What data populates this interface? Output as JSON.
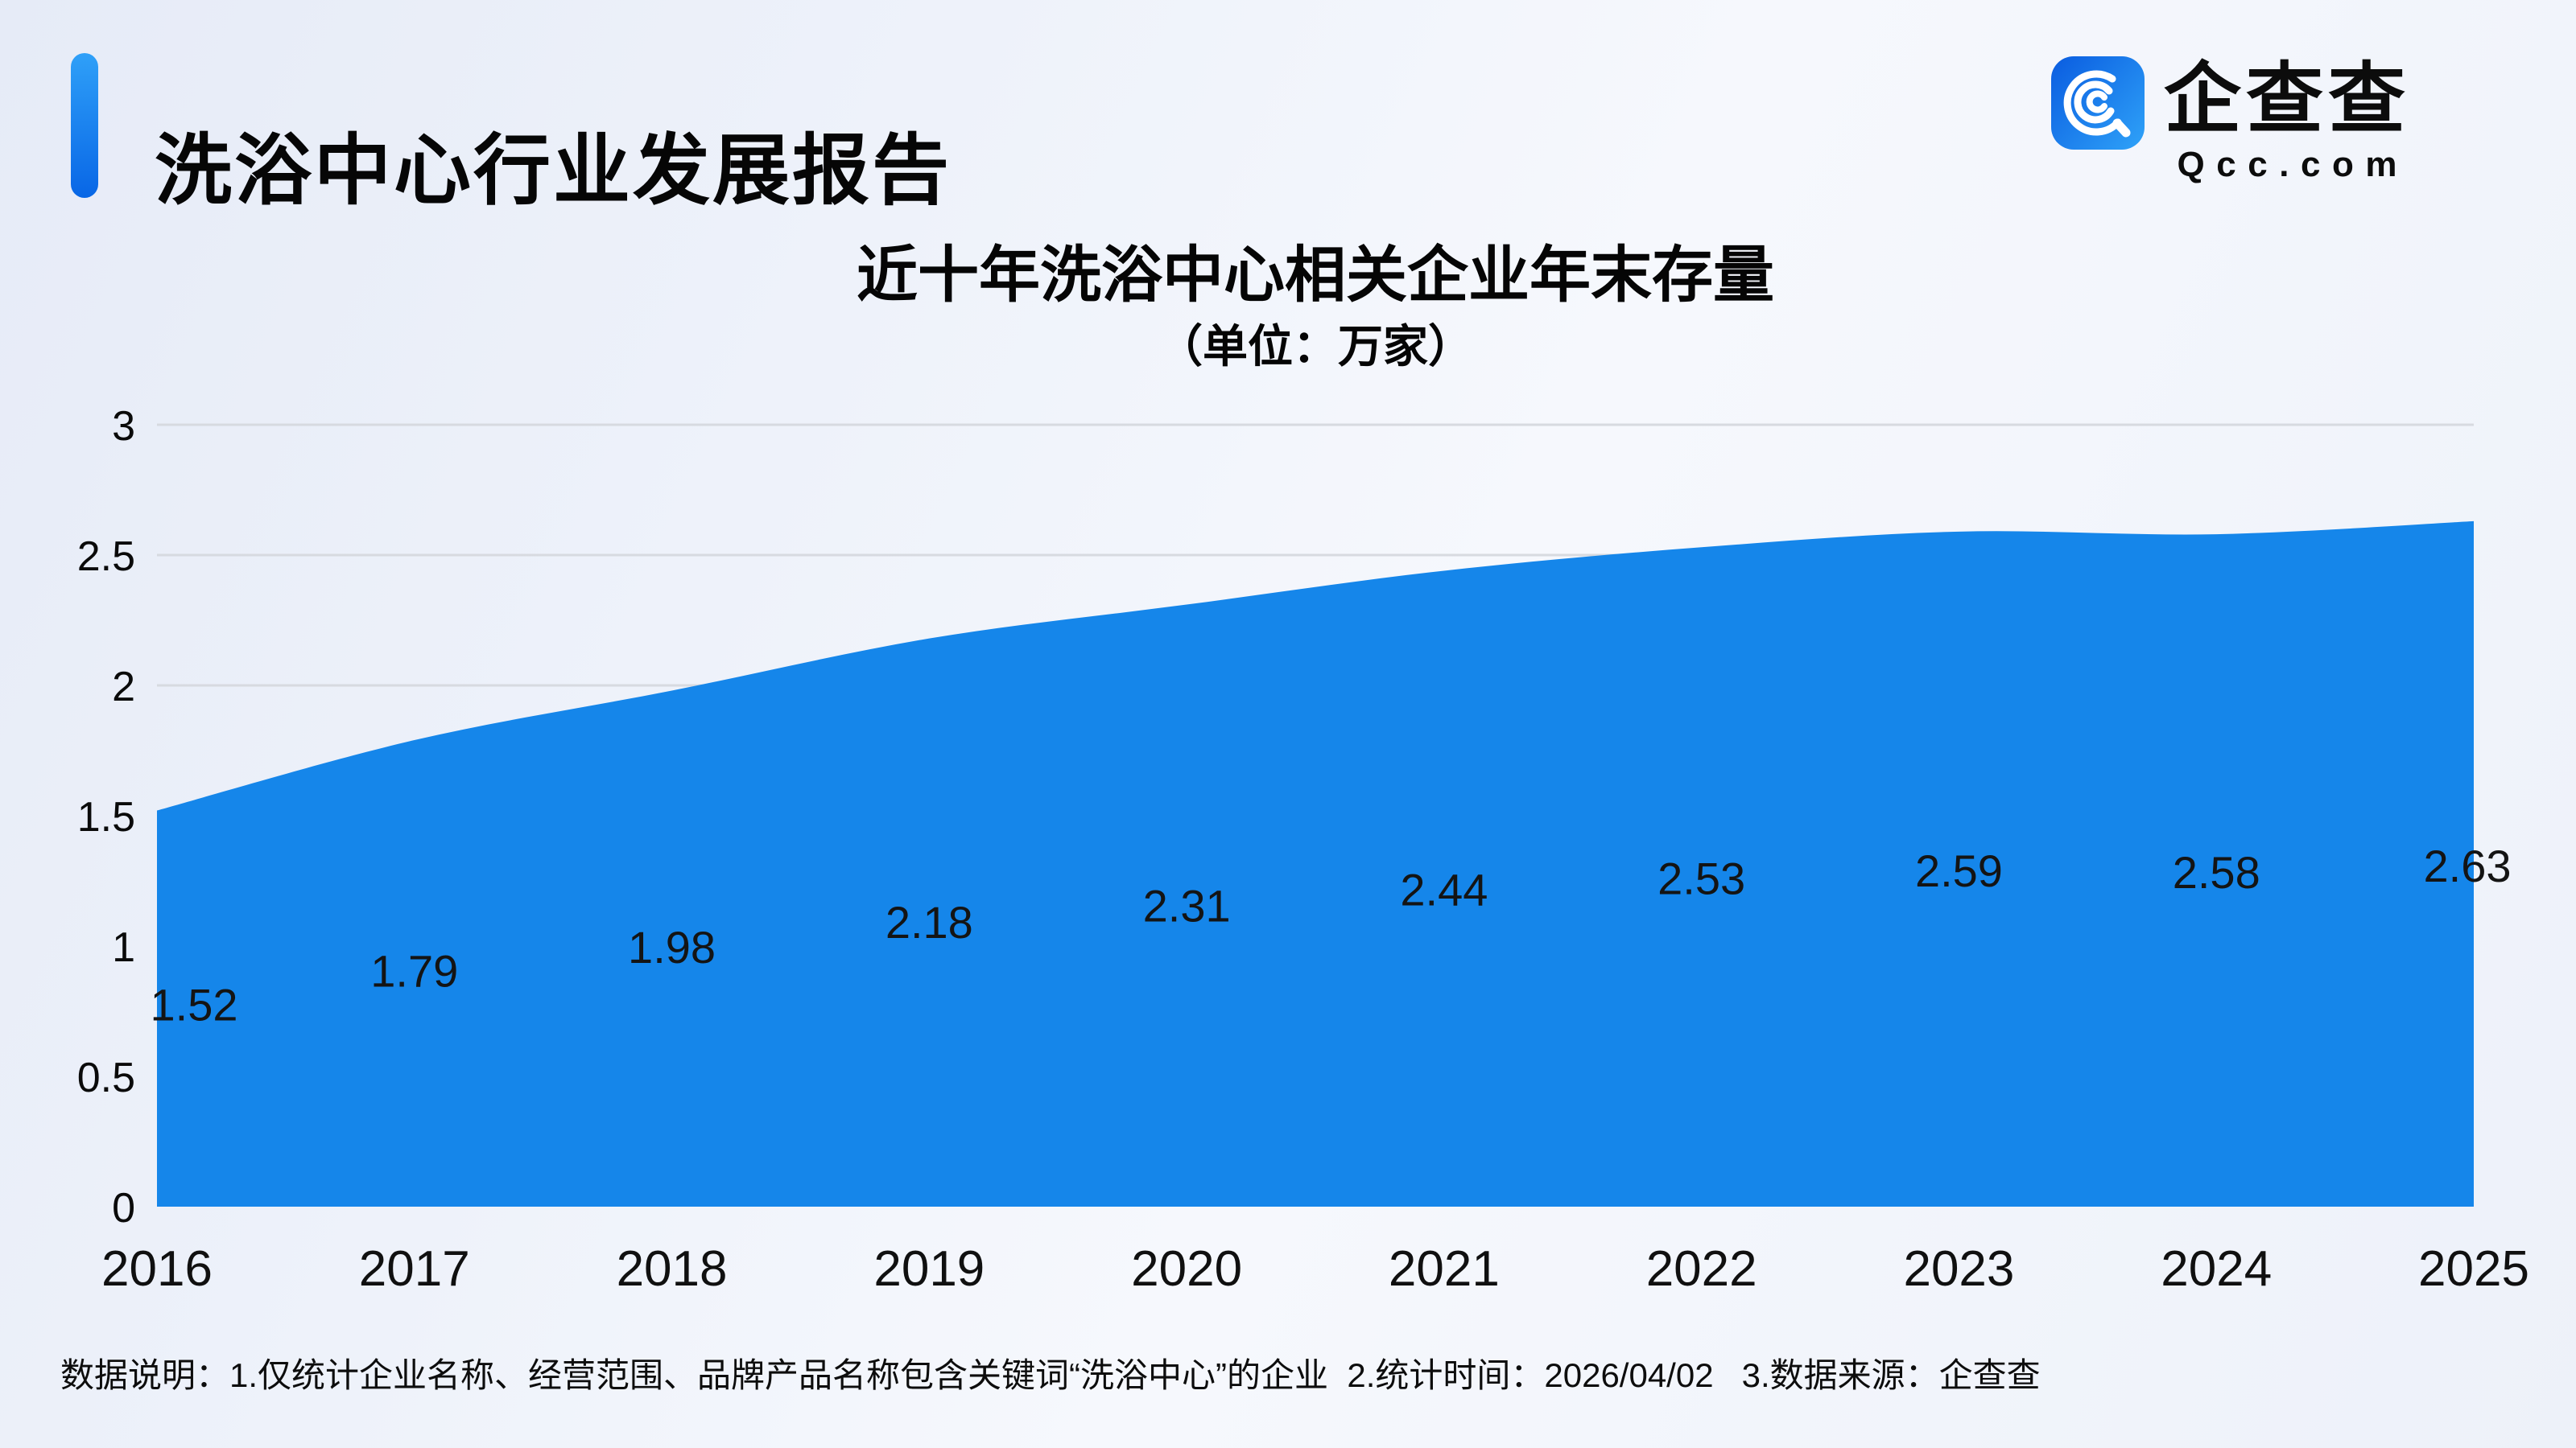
{
  "header": {
    "title": "洗浴中心行业发展报告",
    "logo": {
      "icon": "qcc-logo-icon",
      "brand": "企查查",
      "domain": "Qcc.com"
    }
  },
  "chart_data": {
    "type": "area",
    "title": "近十年洗浴中心相关企业年末存量",
    "subtitle": "（单位：万家）",
    "categories": [
      "2016",
      "2017",
      "2018",
      "2019",
      "2020",
      "2021",
      "2022",
      "2023",
      "2024",
      "2025"
    ],
    "values": [
      1.52,
      1.79,
      1.98,
      2.18,
      2.31,
      2.44,
      2.53,
      2.59,
      2.58,
      2.63
    ],
    "xlabel": "",
    "ylabel": "",
    "ylim": [
      0,
      3
    ],
    "yticks": [
      0,
      0.5,
      1,
      1.5,
      2,
      2.5,
      3
    ],
    "grid": true,
    "legend": "none"
  },
  "footnote": {
    "text": "数据说明：1.仅统计企业名称、经营范围、品牌产品名称包含关键词“洗浴中心”的企业  2.统计时间：2026/04/02   3.数据来源：企查查"
  },
  "colors": {
    "area": "#1586EA",
    "accent_top": "#2FA0F8",
    "accent_bottom": "#0866E6",
    "logo_from": "#0A5CE0",
    "logo_to": "#2D9FF7",
    "grid": "#D7DAE0",
    "label": "#141414"
  }
}
